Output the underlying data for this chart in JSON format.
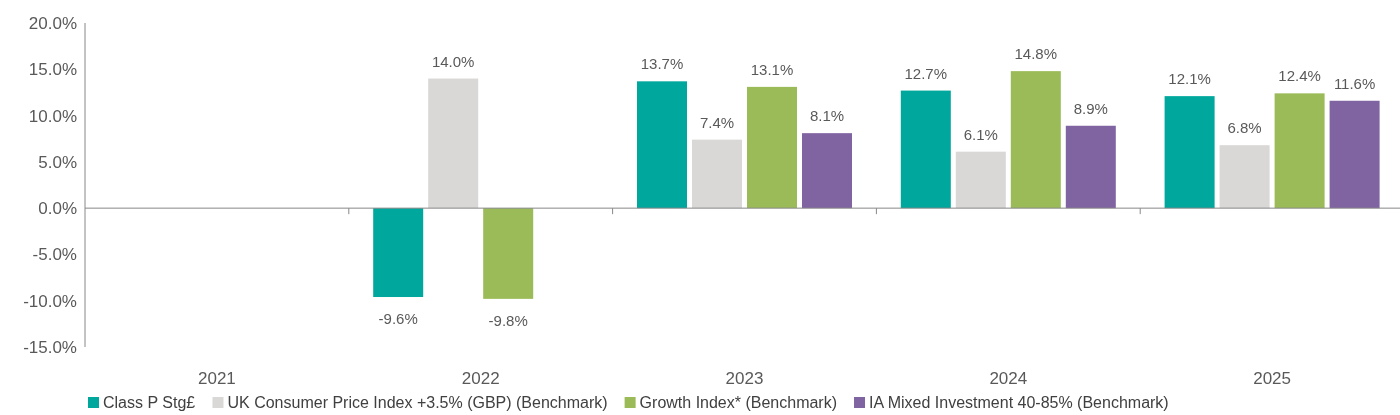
{
  "chart_data": {
    "type": "bar",
    "categories": [
      "2021",
      "2022",
      "2023",
      "2024",
      "2025"
    ],
    "series": [
      {
        "name": "Class P Stg£",
        "color": "#00a79d",
        "values": [
          null,
          -9.6,
          13.7,
          12.7,
          12.1
        ],
        "value_labels": [
          null,
          "-9.6%",
          "13.7%",
          "12.7%",
          "12.1%"
        ]
      },
      {
        "name": "UK Consumer Price Index +3.5% (GBP) (Benchmark)",
        "color": "#d9d8d6",
        "values": [
          null,
          14.0,
          7.4,
          6.1,
          6.8
        ],
        "value_labels": [
          null,
          "14.0%",
          "7.4%",
          "6.1%",
          "6.8%"
        ]
      },
      {
        "name": "Growth Index* (Benchmark)",
        "color": "#9bbb59",
        "values": [
          null,
          -9.8,
          13.1,
          14.8,
          12.4
        ],
        "value_labels": [
          null,
          "-9.8%",
          "13.1%",
          "14.8%",
          "12.4%"
        ]
      },
      {
        "name": "IA Mixed Investment 40-85% (Benchmark)",
        "color": "#8064a2",
        "values": [
          null,
          null,
          8.1,
          8.9,
          11.6
        ],
        "value_labels": [
          null,
          null,
          "8.1%",
          "8.9%",
          "11.6%"
        ]
      }
    ],
    "ylim": [
      -15,
      20
    ],
    "yticks": [
      {
        "value": -15,
        "label": "-15.0%"
      },
      {
        "value": -10,
        "label": "-10.0%"
      },
      {
        "value": -5,
        "label": "-5.0%"
      },
      {
        "value": 0,
        "label": "0.0%"
      },
      {
        "value": 5,
        "label": "5.0%"
      },
      {
        "value": 10,
        "label": "10.0%"
      },
      {
        "value": 15,
        "label": "15.0%"
      },
      {
        "value": 20,
        "label": "20.0%"
      }
    ],
    "legend": "bottom"
  }
}
